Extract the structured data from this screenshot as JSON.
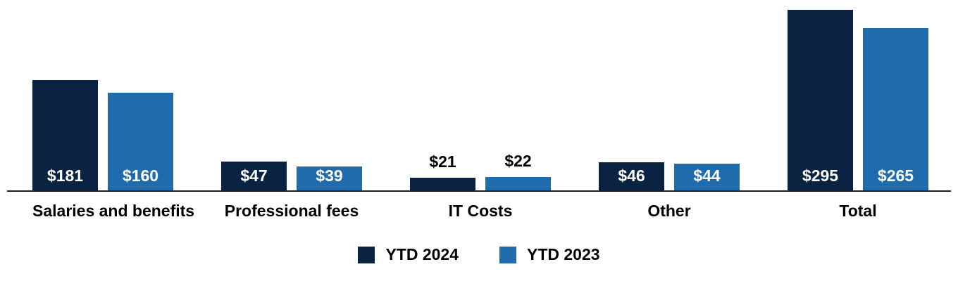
{
  "chart_data": {
    "type": "bar",
    "title": "",
    "xlabel": "",
    "ylabel": "",
    "ylim": [
      0,
      300
    ],
    "grid": false,
    "legend_position": "bottom",
    "background_color": "#FFFFFF",
    "axis_line_color": "#1F1F1F",
    "value_label_inside_color": "#FFFFFF",
    "value_label_outside_color": "#000000",
    "categories": [
      "Salaries and benefits",
      "Professional fees",
      "IT Costs",
      "Other",
      "Total"
    ],
    "series": [
      {
        "name": "YTD 2024",
        "color": "#0A2342",
        "values": [
          181,
          47,
          21,
          46,
          295
        ],
        "labels": [
          "$181",
          "$47",
          "$21",
          "$46",
          "$295"
        ]
      },
      {
        "name": "YTD 2023",
        "color": "#1F6BAC",
        "values": [
          160,
          39,
          22,
          44,
          265
        ],
        "labels": [
          "$160",
          "$39",
          "$22",
          "$44",
          "$265"
        ]
      }
    ]
  }
}
